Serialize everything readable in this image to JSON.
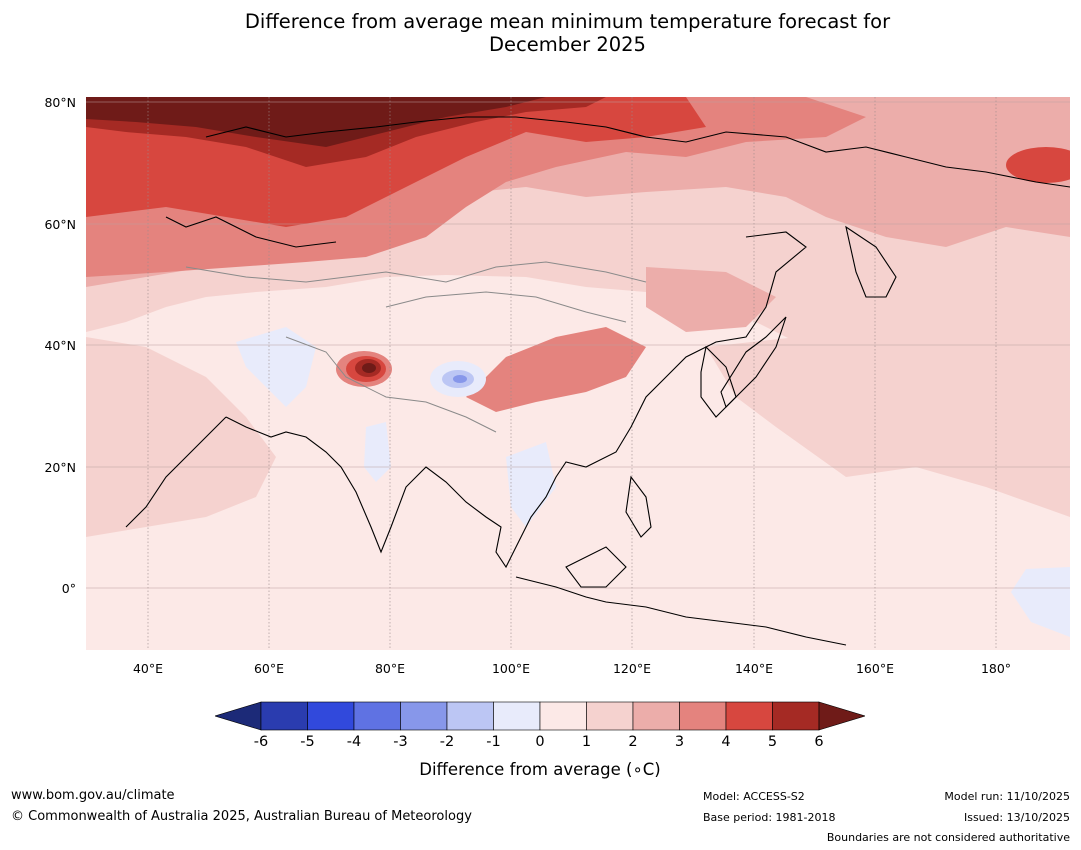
{
  "title": {
    "line1": "Difference from average mean minimum temperature forecast for",
    "line2": "December 2025"
  },
  "map": {
    "region": "Asia",
    "lat_labels": [
      "80°N",
      "60°N",
      "40°N",
      "20°N",
      "0°"
    ],
    "lon_labels": [
      "40°E",
      "60°E",
      "80°E",
      "100°E",
      "120°E",
      "140°E",
      "160°E",
      "180°"
    ]
  },
  "colorbar": {
    "ticks": [
      "-6",
      "-5",
      "-4",
      "-3",
      "-2",
      "-1",
      "0",
      "1",
      "2",
      "3",
      "4",
      "5",
      "6"
    ],
    "colors": [
      "#1c2a78",
      "#2a3caf",
      "#3149dc",
      "#5f72e3",
      "#8797ea",
      "#bcc6f4",
      "#e8ebfb",
      "#fce9e7",
      "#f5d2cf",
      "#ecadaa",
      "#e4837e",
      "#d7473f",
      "#a52a24",
      "#6f1b18"
    ],
    "label": "Difference from average (∘C)"
  },
  "footer": {
    "website": "www.bom.gov.au/climate",
    "copyright": "© Commonwealth of Australia 2025, Australian Bureau of Meteorology",
    "model": "Model: ACCESS-S2",
    "base_period": "Base period: 1981-2018",
    "model_run": "Model run: 11/10/2025",
    "issued": "Issued: 13/10/2025",
    "disclaimer": "Boundaries are not considered authoritative"
  }
}
